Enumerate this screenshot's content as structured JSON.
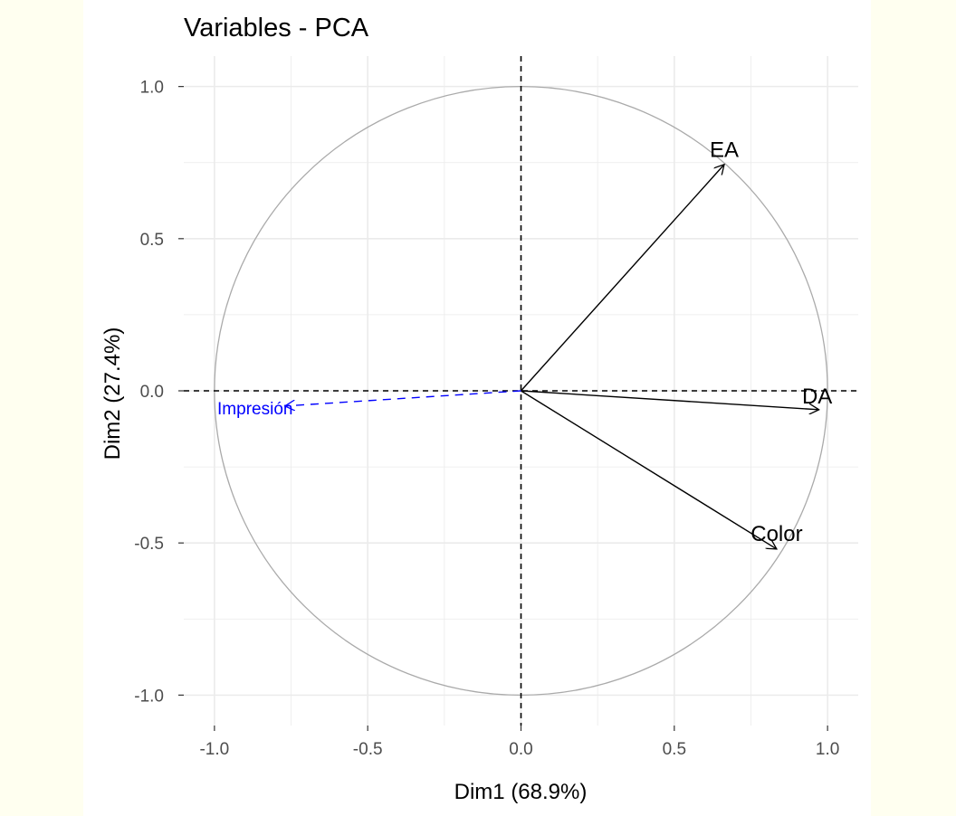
{
  "chart_data": {
    "type": "scatter",
    "title": "Variables - PCA",
    "xlabel": "Dim1 (68.9%)",
    "ylabel": "Dim2 (27.4%)",
    "xlim": [
      -1.1,
      1.1
    ],
    "ylim": [
      -1.1,
      1.1
    ],
    "xticks": [
      "-1.0",
      "-0.5",
      "0.0",
      "0.5",
      "1.0"
    ],
    "yticks": [
      "-1.0",
      "-0.5",
      "0.0",
      "0.5",
      "1.0"
    ],
    "grid": true,
    "correlation_circle_radius": 1,
    "variables": [
      {
        "name": "EA",
        "x": 0.663,
        "y": 0.744,
        "color": "#000000",
        "supplementary": false
      },
      {
        "name": "DA",
        "x": 0.972,
        "y": -0.062,
        "color": "#000000",
        "supplementary": false
      },
      {
        "name": "Color",
        "x": 0.834,
        "y": -0.52,
        "color": "#000000",
        "supplementary": false
      },
      {
        "name": "Impresión",
        "x": -0.77,
        "y": -0.05,
        "color": "#0000ff",
        "supplementary": true
      }
    ]
  }
}
